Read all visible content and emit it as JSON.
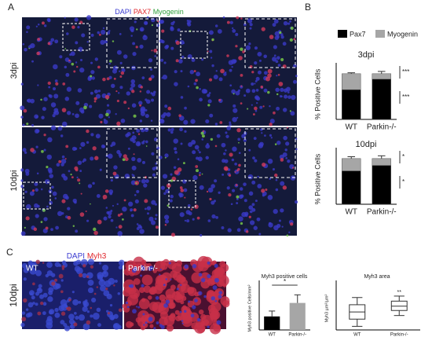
{
  "panel_labels": [
    "A",
    "B",
    "C"
  ],
  "stain_labels_a": [
    {
      "text": "DAPI",
      "color": "#3b3bd1"
    },
    {
      "text": "PAX7",
      "color": "#e0262b"
    },
    {
      "text": "Myogenin",
      "color": "#2e9e3a"
    }
  ],
  "row_labels_a": [
    "3dpi",
    "10dpi"
  ],
  "stain_labels_c": [
    {
      "text": "DAPI",
      "color": "#3b3bd1"
    },
    {
      "text": "Myh3",
      "color": "#e0262b"
    }
  ],
  "row_label_c": "10dpi",
  "image_labels_c": [
    "WT",
    "Parkin-/-"
  ],
  "chart_data": [
    {
      "type": "stacked",
      "title": "3dpi",
      "y_label": "% Positive Cells",
      "categories": [
        "WT",
        "Parkin-/-"
      ],
      "ylim": [
        0,
        110
      ],
      "series": [
        {
          "name": "Pax7",
          "color": "#000000",
          "values": [
            65,
            88
          ],
          "errors": [
            2,
            4
          ]
        },
        {
          "name": "Myogenin",
          "color": "#a6a6a6",
          "values": [
            35,
            12
          ],
          "errors": [
            2,
            5
          ]
        }
      ],
      "annotations": [
        "***",
        "***"
      ]
    },
    {
      "type": "stacked",
      "title": "10dpi",
      "y_label": "% Positive Cells",
      "categories": [
        "WT",
        "Parkin-/-"
      ],
      "ylim": [
        0,
        110
      ],
      "series": [
        {
          "name": "Pax7",
          "color": "#000000",
          "values": [
            73,
            85
          ],
          "errors": [
            3,
            4
          ]
        },
        {
          "name": "Myogenin",
          "color": "#a6a6a6",
          "values": [
            27,
            15
          ],
          "errors": [
            4,
            6
          ]
        }
      ],
      "annotations": [
        "*",
        "*"
      ]
    },
    {
      "type": "bar",
      "title": "Myh3 positive cells",
      "y_label": "Myh3 positive Cells/mm²",
      "categories": [
        "WT",
        "Parkin-/-"
      ],
      "ylim": [
        0,
        0.8
      ],
      "values": [
        0.25,
        0.5
      ],
      "errors": [
        0.1,
        0.15
      ],
      "colors": [
        "#000000",
        "#a6a6a6"
      ],
      "annotations": [
        "*"
      ]
    },
    {
      "type": "box",
      "title": "Myh3 area",
      "y_label": "Myh3 µm²/µm²",
      "categories": [
        "WT",
        "Parkin-/-"
      ],
      "ylim": [
        0,
        0.6
      ],
      "min": [
        0.05,
        0.2
      ],
      "q1": [
        0.15,
        0.27
      ],
      "median": [
        0.25,
        0.33
      ],
      "q3": [
        0.35,
        0.4
      ],
      "max": [
        0.45,
        0.47
      ],
      "annotations": [
        "**"
      ]
    }
  ]
}
